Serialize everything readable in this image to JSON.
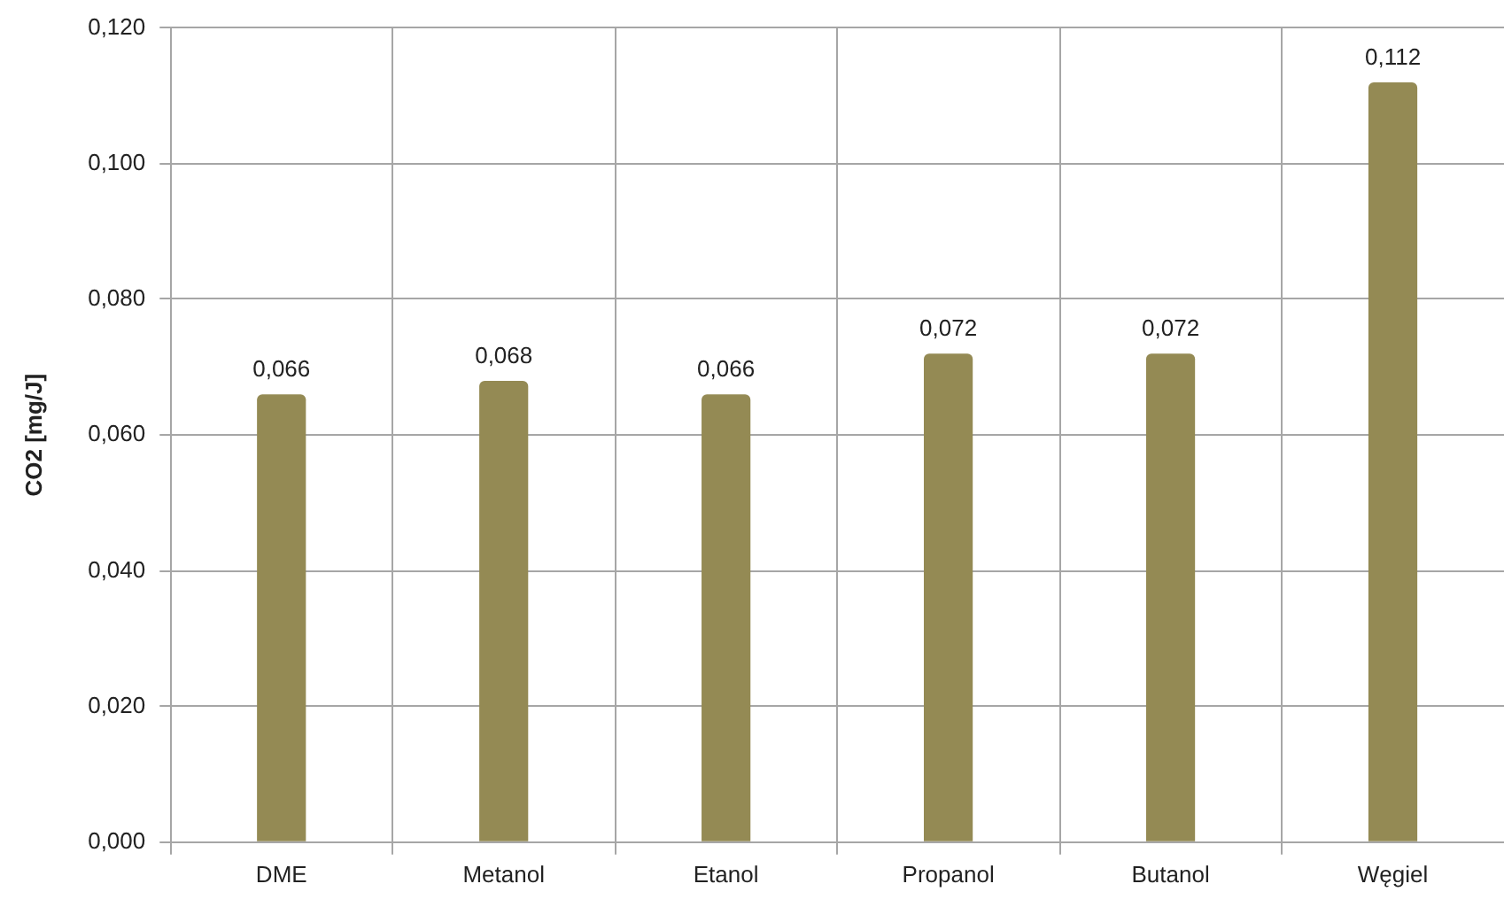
{
  "chart_data": {
    "type": "bar",
    "ylabel": "CO2 [mg/J]",
    "categories": [
      "DME",
      "Metanol",
      "Etanol",
      "Propanol",
      "Butanol",
      "Węgiel"
    ],
    "values": [
      0.066,
      0.068,
      0.066,
      0.072,
      0.072,
      0.112
    ],
    "color": "#948a54",
    "value_labels": [
      "0,066",
      "0,068",
      "0,066",
      "0,072",
      "0,072",
      "0,112"
    ],
    "ylim": [
      0,
      0.12
    ],
    "yticks": [
      {
        "value": 0,
        "label": "0,000"
      },
      {
        "value": 0.02,
        "label": "0,020"
      },
      {
        "value": 0.04,
        "label": "0,040"
      },
      {
        "value": 0.06,
        "label": "0,060"
      },
      {
        "value": 0.08,
        "label": "0,080"
      },
      {
        "value": 0.1,
        "label": "0,100"
      },
      {
        "value": 0.12,
        "label": "0,120"
      }
    ],
    "grid": true
  }
}
